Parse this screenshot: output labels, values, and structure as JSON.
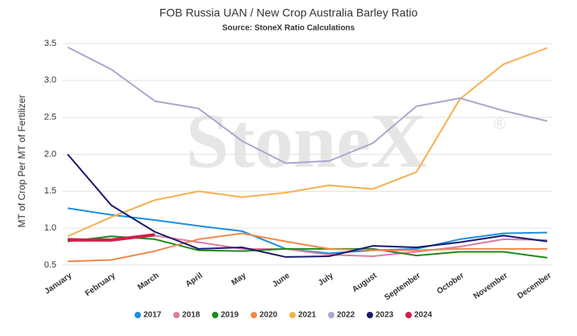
{
  "chart_data": {
    "type": "line",
    "title": "FOB Russia UAN / New Crop Australia Barley Ratio",
    "subtitle": "Source: StoneX Ratio Calculations",
    "watermark": "StoneX",
    "watermark_mark": "®",
    "y_label": "MT of Crop Per MT of Fertilizer",
    "categories": [
      "January",
      "February",
      "March",
      "April",
      "May",
      "June",
      "July",
      "August",
      "September",
      "October",
      "November",
      "December"
    ],
    "ylim": [
      0.5,
      3.5
    ],
    "yticks": [
      0.5,
      {
        "value": 1,
        "label": "1.0"
      },
      1.5,
      {
        "value": 2,
        "label": "2.0"
      },
      2.5,
      {
        "value": 3,
        "label": "3.0"
      },
      3.5
    ],
    "grid": true,
    "legend": "bottom",
    "series": [
      {
        "name": "2017",
        "color": "#1f8fe0",
        "values": [
          1.27,
          1.18,
          1.11,
          1.03,
          0.96,
          0.72,
          0.66,
          0.7,
          0.72,
          0.85,
          0.93,
          0.94
        ]
      },
      {
        "name": "2018",
        "color": "#e07aa0",
        "values": [
          0.86,
          0.83,
          0.9,
          0.81,
          0.72,
          0.72,
          0.64,
          0.62,
          0.68,
          0.75,
          0.85,
          0.84
        ]
      },
      {
        "name": "2019",
        "color": "#1e8a1e",
        "values": [
          0.82,
          0.89,
          0.85,
          0.7,
          0.69,
          0.72,
          0.72,
          0.72,
          0.63,
          0.68,
          0.68,
          0.6
        ]
      },
      {
        "name": "2020",
        "color": "#f08a4b",
        "values": [
          0.55,
          0.57,
          0.69,
          0.85,
          0.93,
          0.82,
          0.72,
          0.7,
          0.7,
          0.72,
          0.72,
          0.72
        ]
      },
      {
        "name": "2021",
        "color": "#f5b04f",
        "values": [
          0.89,
          1.15,
          1.38,
          1.5,
          1.42,
          1.48,
          1.58,
          1.53,
          1.76,
          2.75,
          3.22,
          3.44
        ]
      },
      {
        "name": "2022",
        "color": "#a8a8cc",
        "values": [
          3.45,
          3.15,
          2.72,
          2.62,
          2.18,
          1.88,
          1.91,
          2.15,
          2.65,
          2.76,
          2.59,
          2.45
        ]
      },
      {
        "name": "2023",
        "color": "#1a1a6e",
        "values": [
          2.0,
          1.31,
          0.95,
          0.72,
          0.74,
          0.61,
          0.62,
          0.76,
          0.74,
          0.81,
          0.9,
          0.82
        ]
      },
      {
        "name": "2024",
        "color": "#d0204a",
        "values": [
          0.84,
          0.84,
          0.91,
          null,
          null,
          null,
          null,
          null,
          null,
          null,
          null,
          null
        ]
      }
    ]
  }
}
